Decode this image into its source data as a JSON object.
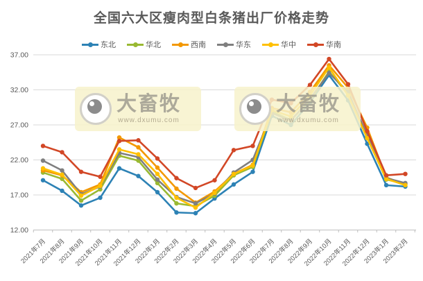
{
  "title": "全国六大区瘦肉型白条猪出厂价格走势",
  "watermark": {
    "name": "大畜牧",
    "url": "www.dxumu.com"
  },
  "colors": {
    "title_text": "#595959",
    "axis_text": "#595959",
    "gridline": "#d9d9d9",
    "axis_line": "#bfbfbf",
    "watermark_bg": "#f7f2cb"
  },
  "chart_data": {
    "type": "line",
    "title": "全国六大区瘦肉型白条猪出厂价格走势",
    "categories": [
      "2021年7月",
      "2021年8月",
      "2021年9月",
      "2021年10月",
      "2021年11月",
      "2021年12月",
      "2022年1月",
      "2022年2月",
      "2022年3月",
      "2022年4月",
      "2022年5月",
      "2022年6月",
      "2022年7月",
      "2022年8月",
      "2022年9月",
      "2022年10月",
      "2022年11月",
      "2022年12月",
      "2023年1月",
      "2023年2月"
    ],
    "series": [
      {
        "name": "东北",
        "color": "#2d82b5",
        "values": [
          19.1,
          17.6,
          15.5,
          16.6,
          20.8,
          19.7,
          17.4,
          14.5,
          14.4,
          16.5,
          18.5,
          20.3,
          28.3,
          27.0,
          30.2,
          34.1,
          30.5,
          24.3,
          18.4,
          18.2
        ]
      },
      {
        "name": "华北",
        "color": "#99b932",
        "values": [
          20.2,
          19.3,
          16.2,
          17.8,
          22.6,
          21.9,
          18.7,
          15.8,
          15.4,
          16.9,
          19.8,
          21.0,
          28.9,
          27.7,
          30.5,
          34.6,
          31.4,
          25.3,
          19.2,
          18.6
        ]
      },
      {
        "name": "西南",
        "color": "#f39800",
        "values": [
          20.5,
          19.8,
          17.4,
          18.5,
          25.2,
          23.8,
          20.9,
          17.9,
          15.9,
          17.5,
          20.0,
          21.3,
          29.4,
          28.8,
          31.7,
          35.5,
          32.3,
          26.6,
          19.5,
          18.5
        ]
      },
      {
        "name": "华东",
        "color": "#7f7f7f",
        "values": [
          21.9,
          20.5,
          17.1,
          18.2,
          23.0,
          22.4,
          19.2,
          16.7,
          15.8,
          17.2,
          20.2,
          22.0,
          28.7,
          27.6,
          30.7,
          34.4,
          31.7,
          25.5,
          19.4,
          18.7
        ]
      },
      {
        "name": "华中",
        "color": "#ffc000",
        "values": [
          20.8,
          19.9,
          16.9,
          18.3,
          23.5,
          22.8,
          20.0,
          16.6,
          15.2,
          17.3,
          20.0,
          21.2,
          29.1,
          28.2,
          31.2,
          35.2,
          31.2,
          25.1,
          19.3,
          18.4
        ]
      },
      {
        "name": "华南",
        "color": "#d24726",
        "values": [
          24.0,
          23.1,
          20.3,
          19.6,
          24.7,
          24.8,
          22.2,
          19.4,
          18.0,
          19.1,
          23.4,
          24.0,
          30.6,
          30.1,
          32.7,
          36.4,
          32.8,
          26.1,
          19.8,
          20.0
        ]
      }
    ],
    "ylim": [
      12,
      37
    ],
    "yticks": [
      12,
      17,
      22,
      27,
      32,
      37
    ],
    "ytick_labels": [
      "12.00",
      "17.00",
      "22.00",
      "27.00",
      "32.00",
      "37.00"
    ],
    "xlabel": "",
    "ylabel": "",
    "grid": true,
    "legend_position": "top",
    "marker": "circle"
  }
}
